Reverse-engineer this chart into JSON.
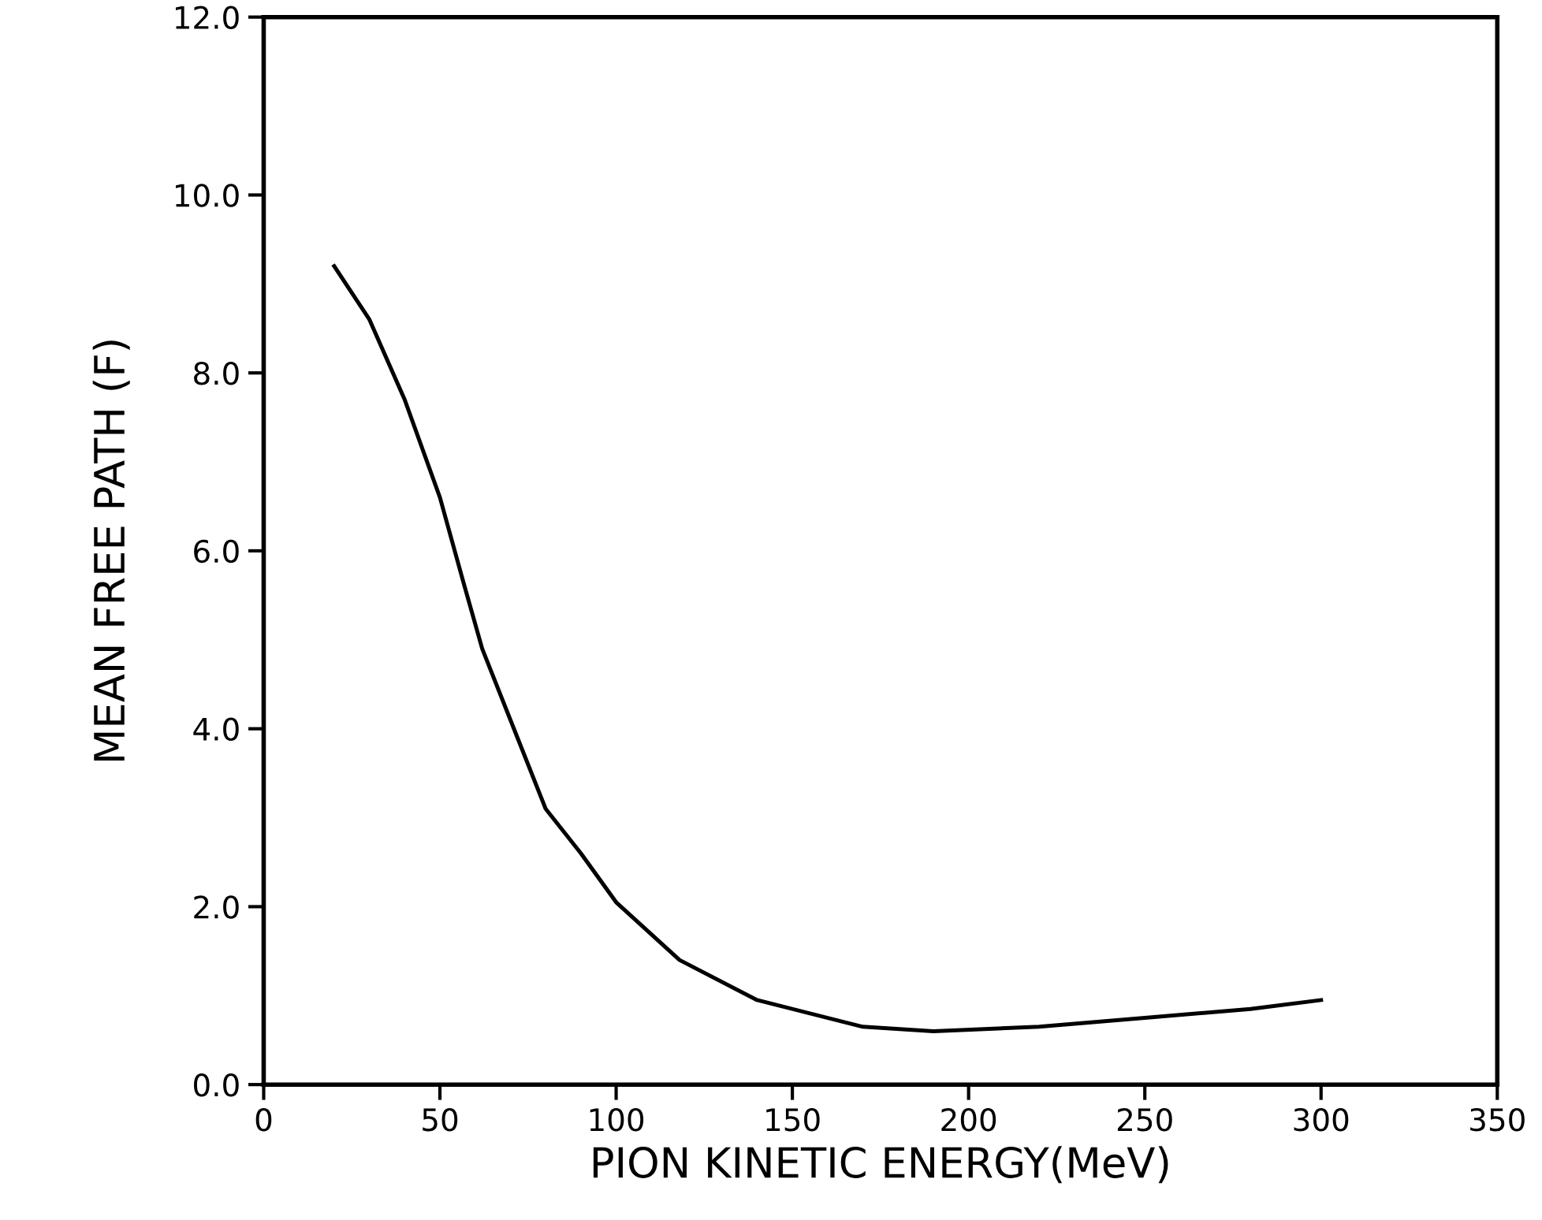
{
  "chart_data": {
    "type": "line",
    "xlabel": "PION KINETIC ENERGY(MeV)",
    "ylabel": "MEAN FREE PATH (F)",
    "series": [
      {
        "color": "#000000",
        "x": [
          20,
          30,
          40,
          50,
          57,
          62,
          72,
          80,
          90,
          100,
          118,
          140,
          170,
          190,
          220,
          250,
          280,
          300
        ],
        "values": [
          9.2,
          8.6,
          7.7,
          6.6,
          5.6,
          4.9,
          3.9,
          3.1,
          2.6,
          2.05,
          1.4,
          0.95,
          0.65,
          0.6,
          0.65,
          0.75,
          0.85,
          0.95
        ]
      }
    ],
    "xlim": [
      0,
      350
    ],
    "xticks": [
      0,
      50,
      100,
      150,
      200,
      250,
      300,
      350
    ],
    "ylim": [
      0,
      12
    ],
    "yticks": [
      {
        "value": 0,
        "label": "0.0"
      },
      {
        "value": 2,
        "label": "2.0"
      },
      {
        "value": 4,
        "label": "4.0"
      },
      {
        "value": 6,
        "label": "6.0"
      },
      {
        "value": 8,
        "label": "8.0"
      },
      {
        "value": 10,
        "label": "10.0"
      },
      {
        "value": 12,
        "label": "12.0"
      }
    ],
    "grid": false,
    "marker": "none",
    "line_style": "solid"
  }
}
